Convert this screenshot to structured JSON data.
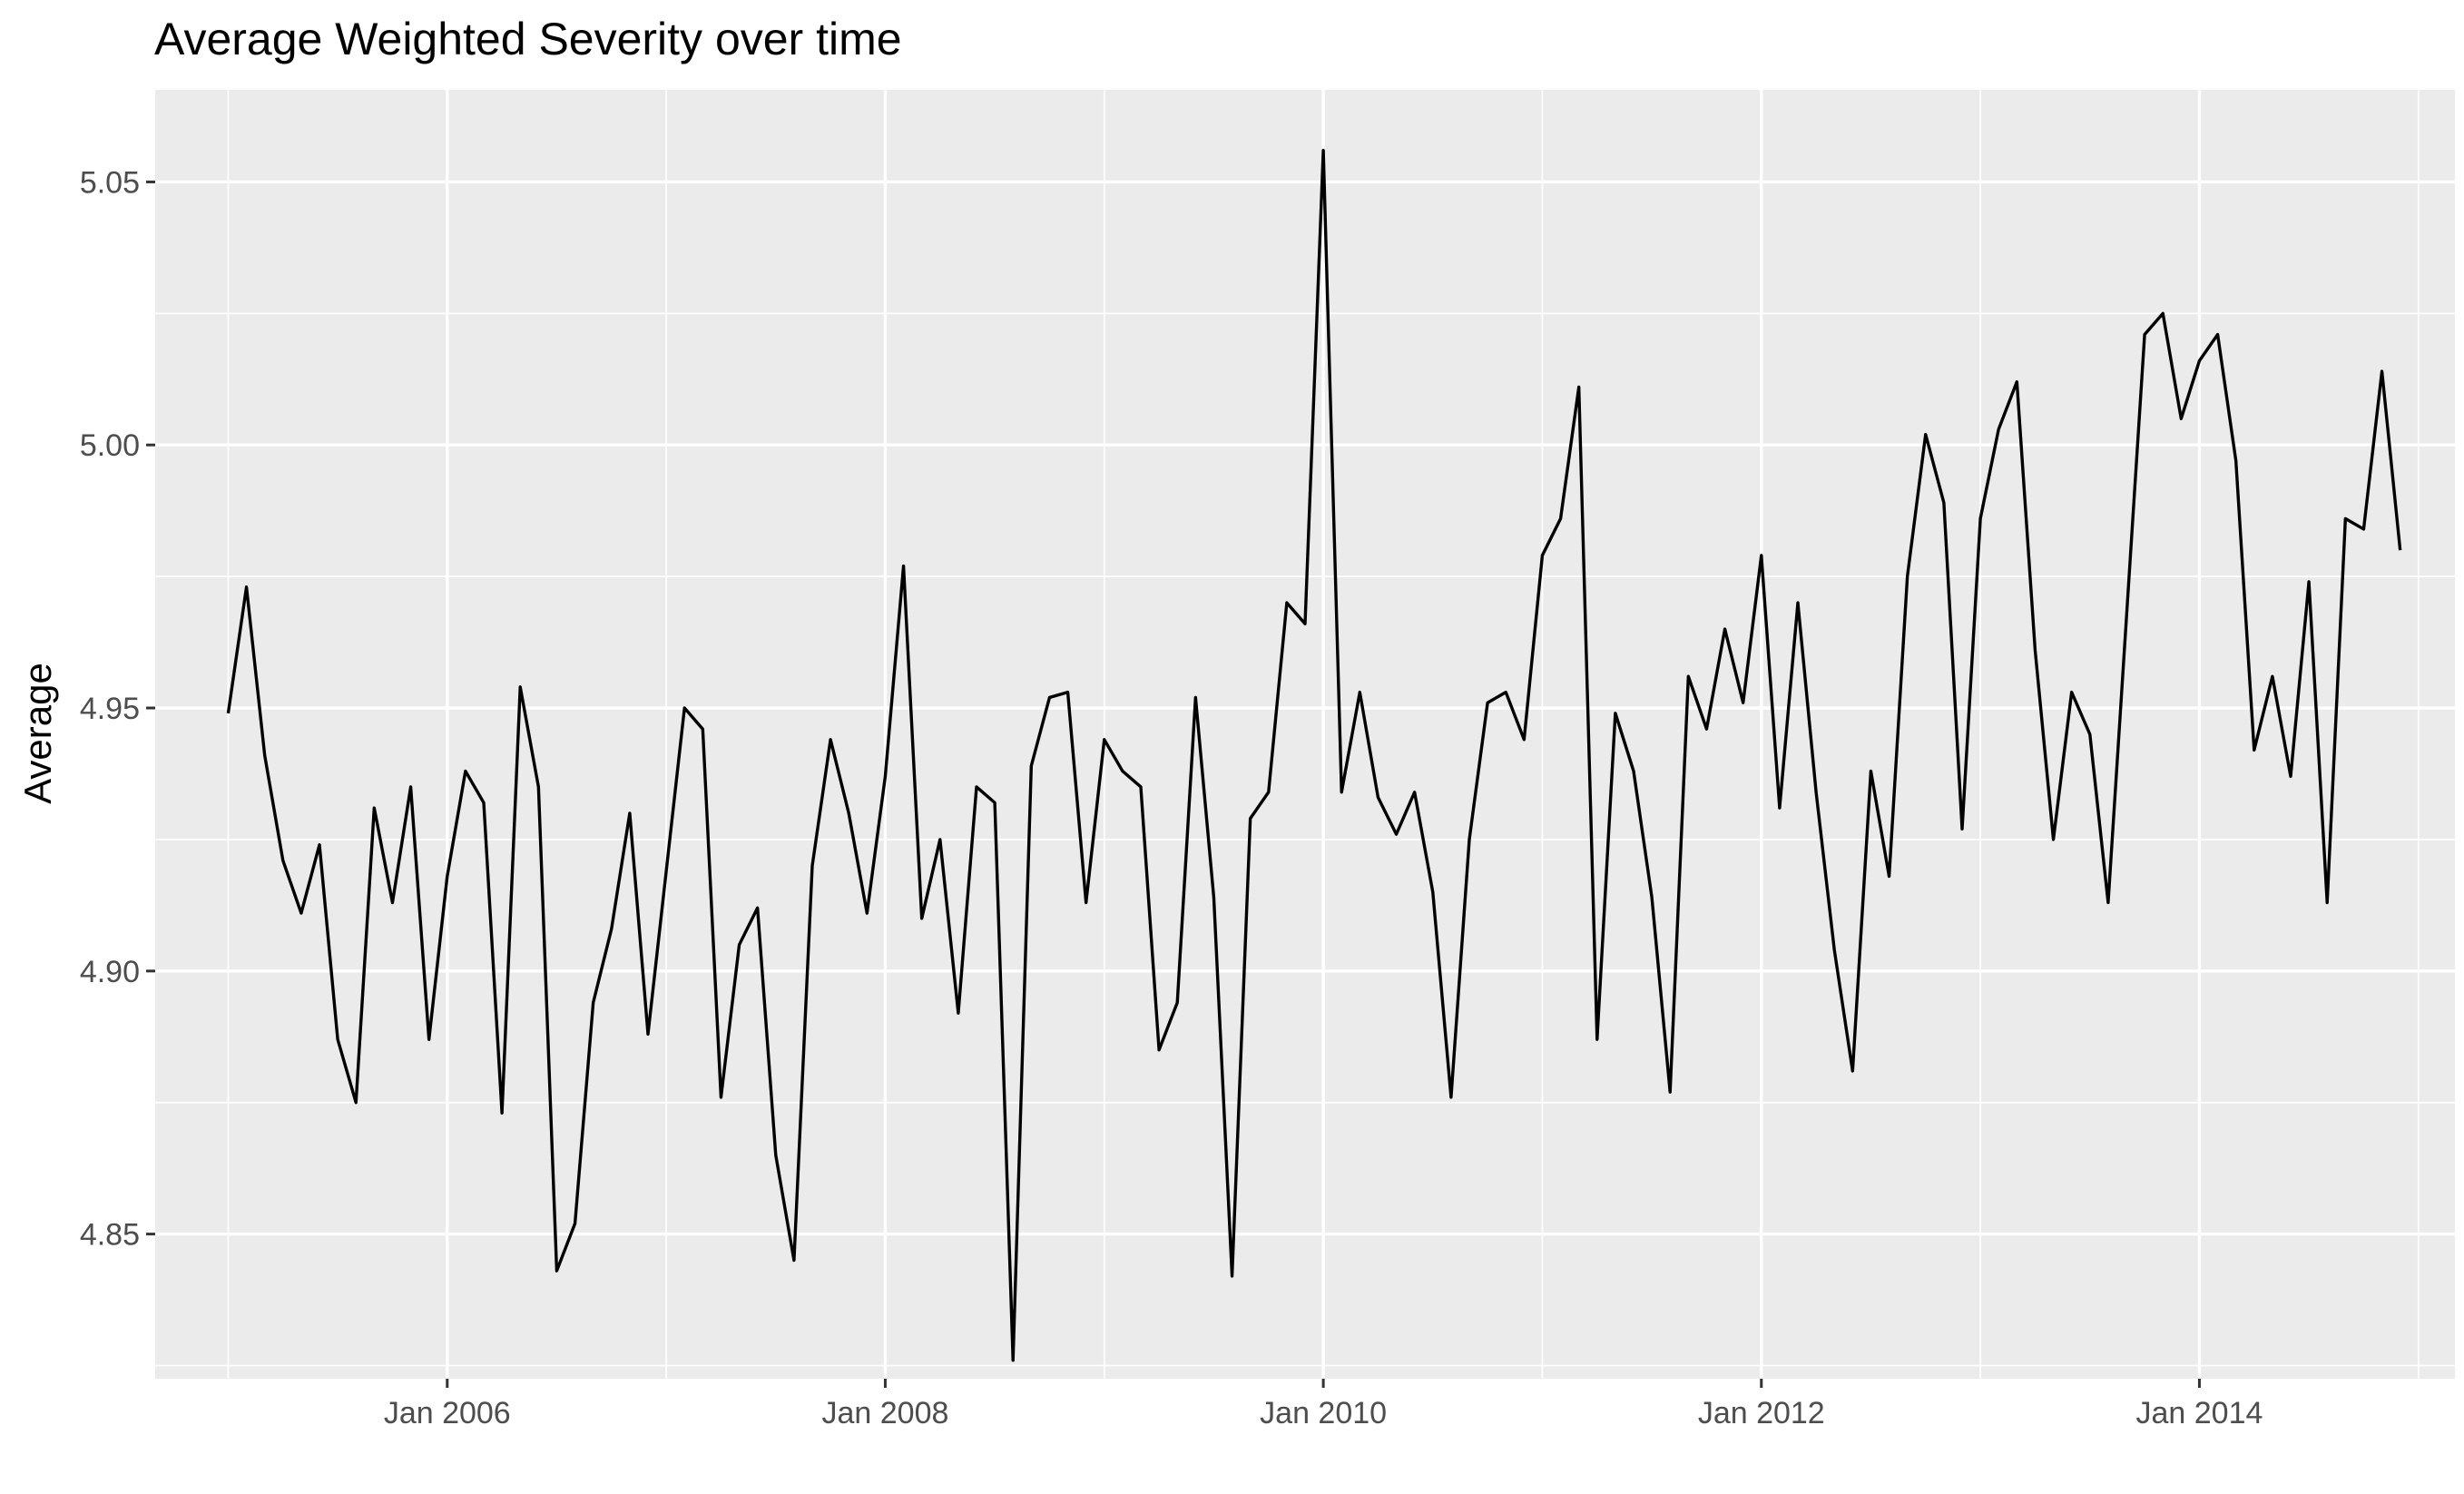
{
  "chart_data": {
    "type": "line",
    "title": "Average Weighted Severity over time",
    "xlabel": "",
    "ylabel": "Average",
    "x_tick_labels": [
      "Jan 2006",
      "Jan 2008",
      "Jan 2010",
      "Jan 2012",
      "Jan 2014"
    ],
    "y_tick_labels": [
      "4.85",
      "4.90",
      "4.95",
      "5.00",
      "5.05"
    ],
    "y_ticks": [
      4.85,
      4.9,
      4.95,
      5.0,
      5.05
    ],
    "ylim": [
      4.8225,
      5.0675
    ],
    "xlim": [
      "2004-09",
      "2015-03"
    ],
    "grid": true,
    "background": "#ebebeb",
    "line_color": "#000000",
    "series": [
      {
        "x": [
          "2005-01",
          "2005-02",
          "2005-03",
          "2005-04",
          "2005-05",
          "2005-06",
          "2005-07",
          "2005-08",
          "2005-09",
          "2005-10",
          "2005-11",
          "2005-12",
          "2006-01",
          "2006-02",
          "2006-03",
          "2006-04",
          "2006-05",
          "2006-06",
          "2006-07",
          "2006-08",
          "2006-09",
          "2006-10",
          "2006-11",
          "2006-12",
          "2007-01",
          "2007-02",
          "2007-03",
          "2007-04",
          "2007-05",
          "2007-06",
          "2007-07",
          "2007-08",
          "2007-09",
          "2007-10",
          "2007-11",
          "2007-12",
          "2008-01",
          "2008-02",
          "2008-03",
          "2008-04",
          "2008-05",
          "2008-06",
          "2008-07",
          "2008-08",
          "2008-09",
          "2008-10",
          "2008-11",
          "2008-12",
          "2009-01",
          "2009-02",
          "2009-03",
          "2009-04",
          "2009-05",
          "2009-06",
          "2009-07",
          "2009-08",
          "2009-09",
          "2009-10",
          "2009-11",
          "2009-12",
          "2010-01",
          "2010-02",
          "2010-03",
          "2010-04",
          "2010-05",
          "2010-06",
          "2010-07",
          "2010-08",
          "2010-09",
          "2010-10",
          "2010-11",
          "2010-12",
          "2011-01",
          "2011-02",
          "2011-03",
          "2011-04",
          "2011-05",
          "2011-06",
          "2011-07",
          "2011-08",
          "2011-09",
          "2011-10",
          "2011-11",
          "2011-12",
          "2012-01",
          "2012-02",
          "2012-03",
          "2012-04",
          "2012-05",
          "2012-06",
          "2012-07",
          "2012-08",
          "2012-09",
          "2012-10",
          "2012-11",
          "2012-12",
          "2013-01",
          "2013-02",
          "2013-03",
          "2013-04",
          "2013-05",
          "2013-06",
          "2013-07",
          "2013-08",
          "2013-09",
          "2013-10",
          "2013-11",
          "2013-12",
          "2014-01",
          "2014-02",
          "2014-03",
          "2014-04",
          "2014-05",
          "2014-06",
          "2014-07",
          "2014-08",
          "2014-09",
          "2014-10",
          "2014-11",
          "2014-12"
        ],
        "values": [
          4.949,
          4.973,
          4.941,
          4.921,
          4.911,
          4.924,
          4.887,
          4.875,
          4.931,
          4.913,
          4.935,
          4.887,
          4.918,
          4.938,
          4.932,
          4.873,
          4.954,
          4.935,
          4.843,
          4.852,
          4.894,
          4.908,
          4.93,
          4.888,
          4.919,
          4.95,
          4.946,
          4.876,
          4.905,
          4.912,
          4.865,
          4.845,
          4.92,
          4.944,
          4.93,
          4.911,
          4.937,
          4.977,
          4.91,
          4.925,
          4.892,
          4.935,
          4.932,
          4.826,
          4.939,
          4.952,
          4.953,
          4.913,
          4.944,
          4.938,
          4.935,
          4.885,
          4.894,
          4.952,
          4.914,
          4.842,
          4.929,
          4.934,
          4.97,
          4.966,
          5.056,
          4.934,
          4.953,
          4.933,
          4.926,
          4.934,
          4.915,
          4.876,
          4.925,
          4.951,
          4.953,
          4.944,
          4.979,
          4.986,
          5.011,
          4.887,
          4.949,
          4.938,
          4.914,
          4.877,
          4.956,
          4.946,
          4.965,
          4.951,
          4.979,
          4.931,
          4.97,
          4.934,
          4.904,
          4.881,
          4.938,
          4.918,
          4.975,
          5.002,
          4.989,
          4.927,
          4.986,
          5.003,
          5.012,
          4.961,
          4.925,
          4.953,
          4.945,
          4.913,
          4.967,
          5.021,
          5.025,
          5.005,
          5.016,
          5.021,
          4.997,
          4.942,
          4.956,
          4.937,
          4.974,
          4.913,
          4.986,
          4.984,
          5.014,
          4.98
        ]
      }
    ]
  }
}
